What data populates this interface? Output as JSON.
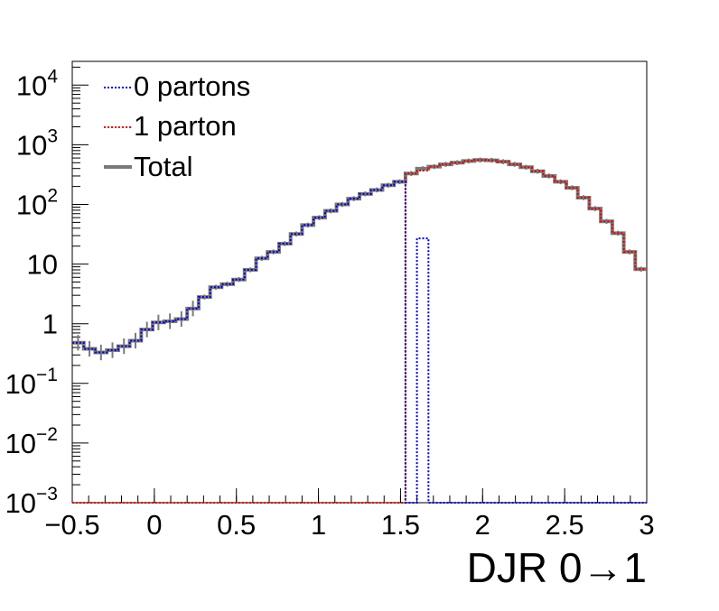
{
  "chart_data": {
    "type": "line",
    "xlabel": "DJR 0→1",
    "ylabel": "",
    "xlim": [
      -0.5,
      3.0
    ],
    "ylim": [
      0.001,
      25000
    ],
    "y_scale": "log",
    "grid": false,
    "legend_position": "top-left",
    "x_ticks": [
      {
        "value": -0.5,
        "label": "−0.5"
      },
      {
        "value": 0,
        "label": "0"
      },
      {
        "value": 0.5,
        "label": "0.5"
      },
      {
        "value": 1,
        "label": "1"
      },
      {
        "value": 1.5,
        "label": "1.5"
      },
      {
        "value": 2,
        "label": "2"
      },
      {
        "value": 2.5,
        "label": "2.5"
      },
      {
        "value": 3,
        "label": "3"
      }
    ],
    "y_ticks": [
      {
        "value": 0.001,
        "base": "10",
        "exp": "−3"
      },
      {
        "value": 0.01,
        "base": "10",
        "exp": "−2"
      },
      {
        "value": 0.1,
        "base": "10",
        "exp": "−1"
      },
      {
        "value": 1,
        "base": "1",
        "exp": ""
      },
      {
        "value": 10,
        "base": "10",
        "exp": ""
      },
      {
        "value": 100,
        "base": "10",
        "exp": "2"
      },
      {
        "value": 1000,
        "base": "10",
        "exp": "3"
      },
      {
        "value": 10000,
        "base": "10",
        "exp": "4"
      }
    ],
    "bin_start": -0.5,
    "bin_width": 0.07,
    "series": [
      {
        "name": "0 partons",
        "color": "#0000cc",
        "style": "dotted",
        "values": [
          0.48,
          0.38,
          0.33,
          0.36,
          0.42,
          0.52,
          0.8,
          1.05,
          1.1,
          1.2,
          1.8,
          2.8,
          4.1,
          4.6,
          5.5,
          8.0,
          12.5,
          16.0,
          22.0,
          32.0,
          45.0,
          60.0,
          78.0,
          100,
          125,
          150,
          175,
          210,
          240,
          0.001,
          27.0,
          0.001,
          0.001,
          0.001,
          0.001,
          0.001,
          0.001,
          0.001,
          0.001,
          0.001,
          0.001,
          0.001,
          0.001,
          0.001,
          0.001,
          0.001,
          0.001,
          0.001,
          0.001,
          0.001
        ]
      },
      {
        "name": "1 parton",
        "color": "#dd0000",
        "style": "dotted",
        "values": [
          0.001,
          0.001,
          0.001,
          0.001,
          0.001,
          0.001,
          0.001,
          0.001,
          0.001,
          0.001,
          0.001,
          0.001,
          0.001,
          0.001,
          0.001,
          0.001,
          0.001,
          0.001,
          0.001,
          0.001,
          0.001,
          0.001,
          0.001,
          0.001,
          0.001,
          0.001,
          0.001,
          0.001,
          0.001,
          330,
          370,
          430,
          470,
          500,
          535,
          555,
          550,
          520,
          470,
          420,
          360,
          300,
          240,
          190,
          130,
          85,
          52,
          33,
          16,
          8.2
        ]
      },
      {
        "name": "Total",
        "color": "#7a7a7a",
        "style": "solid",
        "values": [
          0.48,
          0.38,
          0.33,
          0.36,
          0.42,
          0.52,
          0.8,
          1.05,
          1.1,
          1.2,
          1.8,
          2.8,
          4.1,
          4.6,
          5.5,
          8.0,
          12.5,
          16.0,
          22.0,
          32.0,
          45.0,
          60.0,
          78.0,
          100,
          125,
          150,
          175,
          210,
          240,
          330,
          397,
          430,
          470,
          500,
          535,
          555,
          550,
          520,
          470,
          420,
          360,
          300,
          240,
          190,
          130,
          85,
          52,
          33,
          16,
          8.2
        ]
      }
    ]
  }
}
